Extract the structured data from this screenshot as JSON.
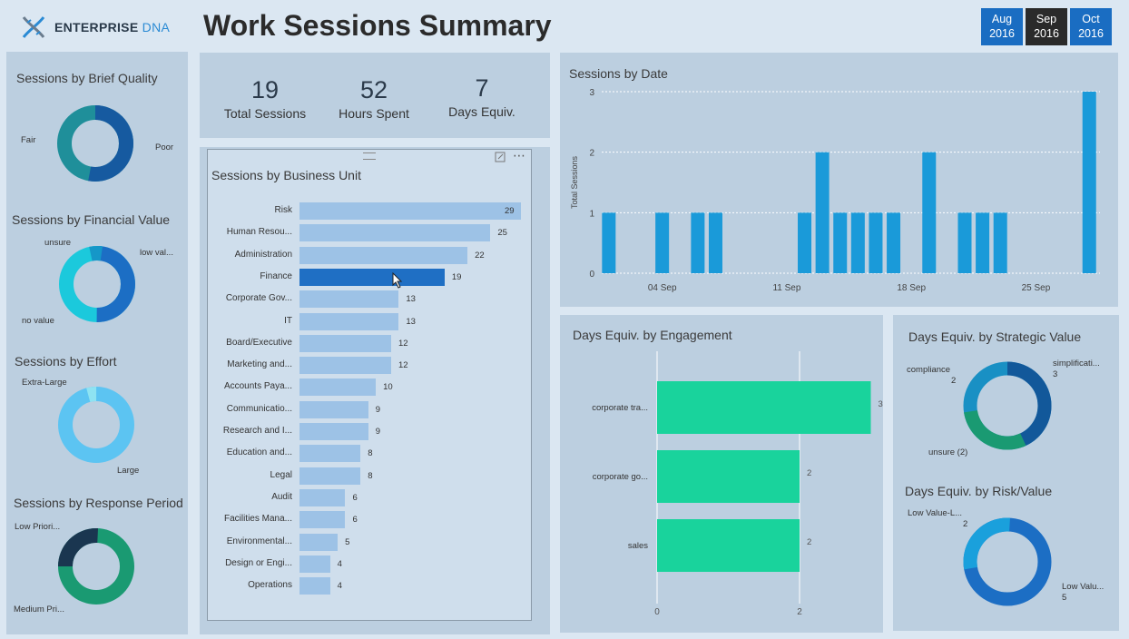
{
  "header": {
    "logo_brand": "ENTERPRISE",
    "logo_suffix": "DNA",
    "title": "Work Sessions Summary",
    "months": [
      {
        "label": "Aug",
        "year": "2016",
        "selected": false
      },
      {
        "label": "Sep",
        "year": "2016",
        "selected": true
      },
      {
        "label": "Oct",
        "year": "2016",
        "selected": false
      }
    ]
  },
  "kpis": [
    {
      "value": "19",
      "label": "Total Sessions"
    },
    {
      "value": "52",
      "label": "Hours Spent"
    },
    {
      "value": "7",
      "label": "Days Equiv."
    }
  ],
  "donuts": {
    "brief_quality": {
      "title": "Sessions by Brief Quality",
      "labels": [
        "Fair",
        "Poor"
      ]
    },
    "financial_value": {
      "title": "Sessions by Financial Value",
      "labels": [
        "unsure",
        "low val...",
        "no value"
      ]
    },
    "effort": {
      "title": "Sessions by Effort",
      "labels": [
        "Extra-Large",
        "Large"
      ]
    },
    "response_period": {
      "title": "Sessions by Response Period",
      "labels": [
        "Low Priori...",
        "Medium Pri..."
      ]
    },
    "strategic_value": {
      "title": "Days Equiv. by Strategic Value",
      "labels": [
        "compliance",
        "2",
        "simplificati...",
        "3",
        "unsure (2)"
      ]
    },
    "risk_value": {
      "title": "Days Equiv. by Risk/Value",
      "labels": [
        "Low Value-L...",
        "2",
        "Low Valu...",
        "5"
      ]
    }
  },
  "business_unit": {
    "title": "Sessions by Business Unit",
    "rows": [
      {
        "label": "Risk",
        "value": 29
      },
      {
        "label": "Human Resou...",
        "value": 25
      },
      {
        "label": "Administration",
        "value": 22
      },
      {
        "label": "Finance",
        "value": 19,
        "selected": true
      },
      {
        "label": "Corporate Gov...",
        "value": 13
      },
      {
        "label": "IT",
        "value": 13
      },
      {
        "label": "Board/Executive",
        "value": 12
      },
      {
        "label": "Marketing and...",
        "value": 12
      },
      {
        "label": "Accounts Paya...",
        "value": 10
      },
      {
        "label": "Communicatio...",
        "value": 9
      },
      {
        "label": "Research and I...",
        "value": 9
      },
      {
        "label": "Education and...",
        "value": 8
      },
      {
        "label": "Legal",
        "value": 8
      },
      {
        "label": "Audit",
        "value": 6
      },
      {
        "label": "Facilities Mana...",
        "value": 6
      },
      {
        "label": "Environmental...",
        "value": 5
      },
      {
        "label": "Design or Engi...",
        "value": 4
      },
      {
        "label": "Operations",
        "value": 4
      }
    ]
  },
  "chart_data": [
    {
      "type": "bar",
      "title": "Sessions by Date",
      "ylabel": "Total Sessions",
      "ylim": [
        0,
        3
      ],
      "yticks": [
        "0",
        "1",
        "2",
        "3"
      ],
      "xticks": [
        "04 Sep",
        "11 Sep",
        "18 Sep",
        "25 Sep"
      ],
      "x": [
        1,
        4,
        6,
        7,
        12,
        13,
        14,
        15,
        16,
        17,
        19,
        21,
        22,
        23,
        28
      ],
      "values": [
        1,
        1,
        1,
        1,
        1,
        2,
        1,
        1,
        1,
        1,
        2,
        1,
        1,
        1,
        3
      ],
      "color": "#1a9ad9"
    },
    {
      "type": "bar",
      "title": "Days Equiv. by Engagement",
      "categories": [
        "corporate tra...",
        "corporate go...",
        "sales"
      ],
      "values": [
        3,
        2,
        2
      ],
      "xticks": [
        "0",
        "2"
      ],
      "color": "#19d39c"
    }
  ]
}
